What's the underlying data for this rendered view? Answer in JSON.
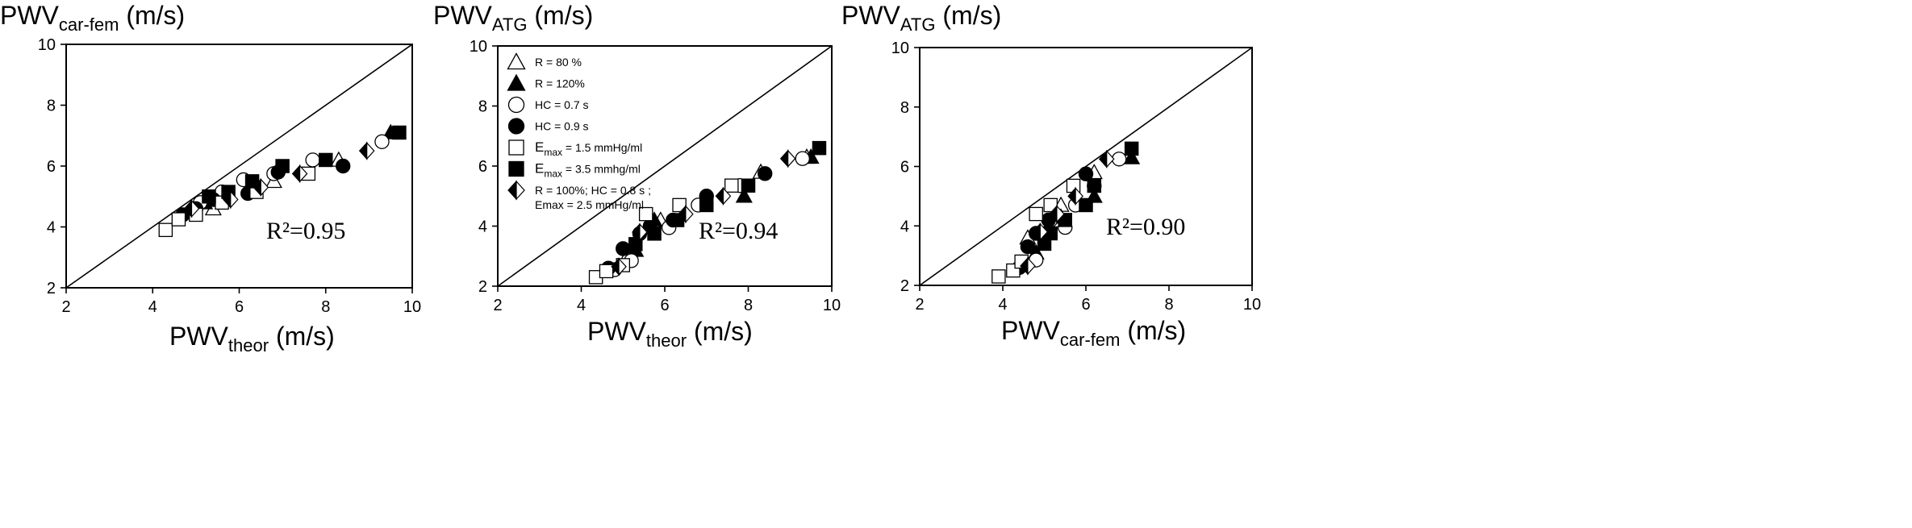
{
  "chart_data": [
    {
      "type": "scatter",
      "ylabel": {
        "main": "PWV",
        "sub": "car-fem",
        "unit": " (m/s)"
      },
      "xlabel": {
        "main": "PWV",
        "sub": "theor",
        "unit": " (m/s)"
      },
      "xlim": [
        2,
        10
      ],
      "ylim": [
        2,
        10
      ],
      "ticks": [
        "2",
        "4",
        "6",
        "8",
        "10"
      ],
      "identity_line": true,
      "r2": "R²=0.95",
      "series": [
        {
          "name": "R = 80 %",
          "marker": "triangle-open",
          "x": [
            5.4,
            6.8,
            8.3
          ],
          "y": [
            4.6,
            5.5,
            6.2
          ]
        },
        {
          "name": "R = 120%",
          "marker": "triangle-filled",
          "x": [
            5.2,
            6.3,
            9.5
          ],
          "y": [
            4.8,
            5.4,
            7.1
          ]
        },
        {
          "name": "HC = 0.7 s",
          "marker": "circle-open",
          "x": [
            5.1,
            5.6,
            6.1,
            6.8,
            7.7,
            9.3
          ],
          "y": [
            4.8,
            5.15,
            5.55,
            5.75,
            6.2,
            6.8
          ]
        },
        {
          "name": "HC = 0.9 s",
          "marker": "circle-filled",
          "x": [
            4.7,
            5.0,
            5.4,
            6.2,
            6.9,
            8.4
          ],
          "y": [
            4.4,
            4.6,
            4.9,
            5.1,
            5.8,
            6.0
          ]
        },
        {
          "name": "Emax = 1.5 mmHg/ml",
          "marker": "square-open",
          "x": [
            4.3,
            4.6,
            5.0,
            5.6,
            6.4,
            7.6
          ],
          "y": [
            3.9,
            4.25,
            4.4,
            4.8,
            5.15,
            5.75
          ]
        },
        {
          "name": "Emax = 3.5 mmhg/ml",
          "marker": "square-filled",
          "x": [
            5.3,
            5.75,
            6.3,
            7.0,
            8.0,
            9.7
          ],
          "y": [
            5.0,
            5.15,
            5.5,
            6.0,
            6.2,
            7.1
          ]
        },
        {
          "name": "R = 100%; HC = 0.8 s ; Emax = 2.5 mmHg/ml",
          "marker": "diamond-half",
          "x": [
            4.9,
            5.8,
            6.5,
            7.4,
            8.95
          ],
          "y": [
            4.6,
            4.9,
            5.3,
            5.75,
            6.5
          ]
        }
      ]
    },
    {
      "type": "scatter",
      "ylabel": {
        "main": "PWV",
        "sub": "ATG",
        "unit": " (m/s)"
      },
      "xlabel": {
        "main": "PWV",
        "sub": "theor",
        "unit": " (m/s)"
      },
      "xlim": [
        2,
        10
      ],
      "ylim": [
        2,
        10
      ],
      "ticks": [
        "2",
        "4",
        "6",
        "8",
        "10"
      ],
      "identity_line": true,
      "r2": "R²=0.94",
      "legend_position": "top-left",
      "legend": [
        {
          "marker": "triangle-open",
          "text": "R = 80 %"
        },
        {
          "marker": "triangle-filled",
          "text": "R = 120%"
        },
        {
          "marker": "circle-open",
          "text": "HC = 0.7 s"
        },
        {
          "marker": "circle-filled",
          "text": "HC = 0.9 s"
        },
        {
          "marker": "square-open",
          "text": "E",
          "sub": "max",
          "rest": " = 1.5 mmHg/ml"
        },
        {
          "marker": "square-filled",
          "text": "E",
          "sub": "max",
          "rest": " = 3.5 mmhg/ml"
        },
        {
          "marker": "diamond-half",
          "text": "R = 100%; HC = 0.8 s ;",
          "line2": "Emax = 2.5 mmHg/ml"
        }
      ],
      "series": [
        {
          "name": "R = 80 %",
          "marker": "triangle-open",
          "x": [
            5.1,
            5.9,
            8.3,
            9.4
          ],
          "y": [
            3.0,
            4.2,
            5.8,
            6.3
          ]
        },
        {
          "name": "R = 120%",
          "marker": "triangle-filled",
          "x": [
            5.3,
            5.75,
            7.9,
            9.5
          ],
          "y": [
            3.2,
            4.2,
            5.0,
            6.3
          ]
        },
        {
          "name": "HC = 0.7 s",
          "marker": "circle-open",
          "x": [
            4.8,
            5.2,
            5.7,
            6.1,
            6.8,
            7.8,
            9.3
          ],
          "y": [
            2.55,
            2.85,
            3.9,
            3.95,
            4.7,
            5.35,
            6.25
          ]
        },
        {
          "name": "HC = 0.9 s",
          "marker": "circle-filled",
          "x": [
            4.65,
            5.0,
            5.4,
            5.65,
            6.2,
            7.0,
            8.4
          ],
          "y": [
            2.6,
            3.25,
            3.75,
            4.0,
            4.2,
            5.0,
            5.75
          ]
        },
        {
          "name": "Emax = 1.5 mmHg/ml",
          "marker": "square-open",
          "x": [
            4.35,
            4.6,
            5.0,
            5.55,
            6.35,
            7.6
          ],
          "y": [
            2.3,
            2.5,
            2.7,
            4.4,
            4.7,
            5.35
          ]
        },
        {
          "name": "Emax = 3.5 mmhg/ml",
          "marker": "square-filled",
          "x": [
            5.3,
            5.75,
            6.3,
            7.0,
            8.0,
            9.7
          ],
          "y": [
            3.4,
            3.75,
            4.2,
            4.7,
            5.35,
            6.6
          ]
        },
        {
          "name": "R = 100%; HC = 0.8 s ; Emax = 2.5 mmHg/ml",
          "marker": "diamond-half",
          "x": [
            4.9,
            5.4,
            6.5,
            7.4,
            8.95
          ],
          "y": [
            2.65,
            3.8,
            4.4,
            5.0,
            6.25
          ]
        }
      ]
    },
    {
      "type": "scatter",
      "ylabel": {
        "main": "PWV",
        "sub": "ATG",
        "unit": " (m/s)"
      },
      "xlabel": {
        "main": "PWV",
        "sub": "car-fem",
        "unit": " (m/s)"
      },
      "xlim": [
        2,
        10
      ],
      "ylim": [
        2,
        10
      ],
      "ticks": [
        "2",
        "4",
        "6",
        "8",
        "10"
      ],
      "identity_line": true,
      "r2": "R²=0.90",
      "series": [
        {
          "name": "R = 80 %",
          "marker": "triangle-open",
          "x": [
            4.6,
            5.4,
            6.2
          ],
          "y": [
            3.6,
            4.7,
            5.8
          ]
        },
        {
          "name": "R = 120%",
          "marker": "triangle-filled",
          "x": [
            4.8,
            5.4,
            6.2,
            7.1
          ],
          "y": [
            3.1,
            4.3,
            5.0,
            6.3
          ]
        },
        {
          "name": "HC = 0.7 s",
          "marker": "circle-open",
          "x": [
            4.8,
            5.15,
            5.5,
            5.75,
            6.2,
            6.8
          ],
          "y": [
            2.85,
            4.2,
            3.95,
            4.7,
            5.35,
            6.25
          ]
        },
        {
          "name": "HC = 0.9 s",
          "marker": "circle-filled",
          "x": [
            4.4,
            4.6,
            4.8,
            5.1,
            5.1,
            6.0
          ],
          "y": [
            2.6,
            3.3,
            3.75,
            3.8,
            4.2,
            5.75
          ]
        },
        {
          "name": "Emax = 1.5 mmHg/ml",
          "marker": "square-open",
          "x": [
            3.9,
            4.25,
            4.45,
            4.8,
            5.15,
            5.7
          ],
          "y": [
            2.3,
            2.5,
            2.8,
            4.4,
            4.7,
            5.35
          ]
        },
        {
          "name": "Emax = 3.5 mmhg/ml",
          "marker": "square-filled",
          "x": [
            5.0,
            5.15,
            5.5,
            6.0,
            6.2,
            7.1
          ],
          "y": [
            3.4,
            3.75,
            4.2,
            4.7,
            5.35,
            6.6
          ]
        },
        {
          "name": "R = 100%; HC = 0.8 s ; Emax = 2.5 mmHg/ml",
          "marker": "diamond-half",
          "x": [
            4.6,
            4.9,
            5.3,
            5.75,
            6.5
          ],
          "y": [
            2.65,
            3.8,
            4.4,
            5.0,
            6.25
          ]
        }
      ]
    }
  ]
}
